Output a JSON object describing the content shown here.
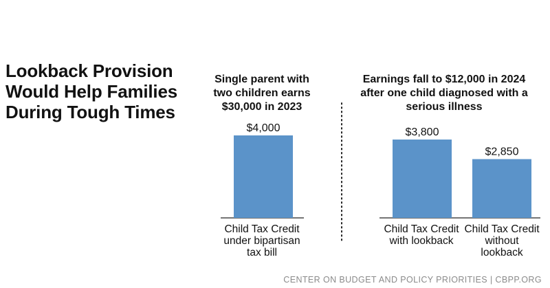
{
  "title_lines": [
    "Lookback Provision",
    "Would Help Families",
    "During Tough Times"
  ],
  "panels": [
    {
      "heading_lines": [
        "Single parent with",
        "two children earns",
        "$30,000 in 2023"
      ]
    },
    {
      "heading_lines": [
        "Earnings fall to $12,000 in 2024",
        "after one child diagnosed with a",
        "serious illness"
      ]
    }
  ],
  "chart_data": {
    "type": "bar",
    "title": "Lookback Provision Would Help Families During Tough Times",
    "xlabel": "",
    "ylabel": "",
    "ylim": [
      0,
      4000
    ],
    "grid": false,
    "categories": [
      "Child Tax Credit under bipartisan tax bill",
      "Child Tax Credit with lookback",
      "Child Tax Credit without lookback"
    ],
    "category_lines": [
      [
        "Child Tax Credit",
        "under bipartisan",
        "tax bill"
      ],
      [
        "Child Tax Credit",
        "with lookback"
      ],
      [
        "Child Tax Credit",
        "without",
        "lookback"
      ]
    ],
    "values": [
      4000,
      3800,
      2850
    ],
    "value_labels": [
      "$4,000",
      "$3,800",
      "$2,850"
    ],
    "bar_color": "#5b93c9"
  },
  "footer": "CENTER ON BUDGET AND POLICY PRIORITIES | CBPP.ORG"
}
